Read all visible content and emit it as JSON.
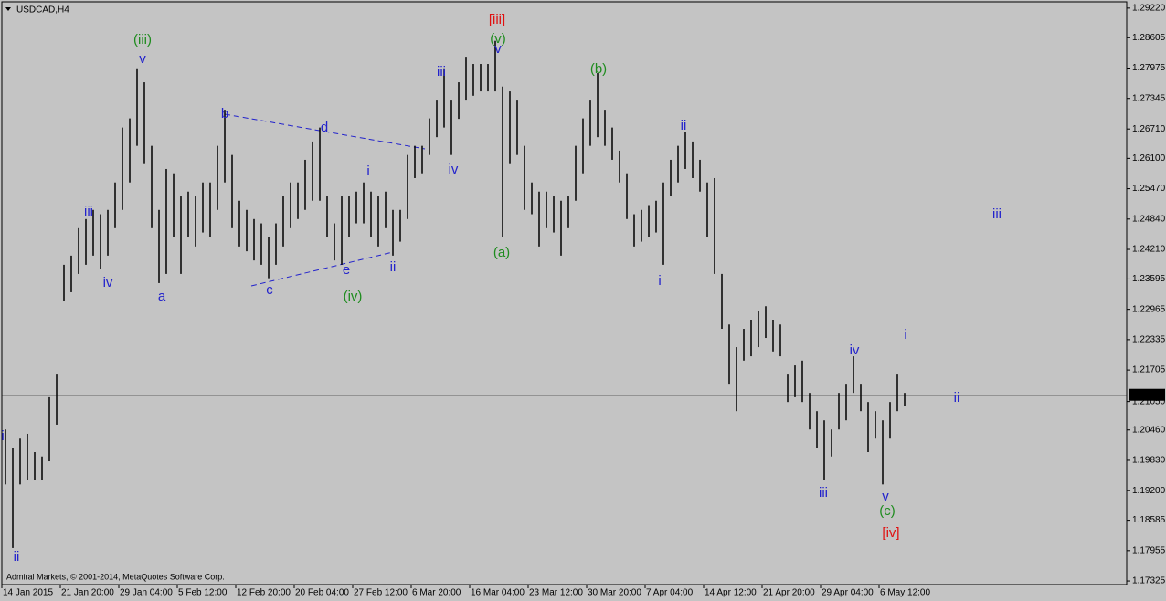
{
  "chart_data": {
    "type": "ohlc",
    "title": "USDCAD,H4",
    "footer": "Admiral Markets, © 2001-2014, MetaQuotes Software Corp.",
    "bar_color": "#000000",
    "background": "#c4c4c4",
    "categories": [
      "14 Jan 2015",
      null,
      null,
      null,
      null,
      null,
      null,
      null,
      "21 Jan 20:00",
      null,
      null,
      null,
      null,
      null,
      null,
      null,
      "29 Jan 04:00",
      null,
      null,
      null,
      null,
      null,
      null,
      null,
      "5 Feb 12:00",
      null,
      null,
      null,
      null,
      null,
      null,
      null,
      "12 Feb 20:00",
      null,
      null,
      null,
      null,
      null,
      null,
      null,
      "20 Feb 04:00",
      null,
      null,
      null,
      null,
      null,
      null,
      null,
      "27 Feb 12:00",
      null,
      null,
      null,
      null,
      null,
      null,
      null,
      "6 Mar 20:00",
      null,
      null,
      null,
      null,
      null,
      null,
      null,
      "16 Mar 04:00",
      null,
      null,
      null,
      null,
      null,
      null,
      null,
      "23 Mar 12:00",
      null,
      null,
      null,
      null,
      null,
      null,
      null,
      "30 Mar 20:00",
      null,
      null,
      null,
      null,
      null,
      null,
      null,
      "7 Apr 04:00",
      null,
      null,
      null,
      null,
      null,
      null,
      null,
      "14 Apr 12:00",
      null,
      null,
      null,
      null,
      null,
      null,
      null,
      "21 Apr 20:00",
      null,
      null,
      null,
      null,
      null,
      null,
      null,
      "29 Apr 04:00",
      null,
      null,
      null,
      null,
      null,
      null,
      null,
      "6 May 12:00",
      null,
      null,
      null
    ],
    "high": [
      1.2047,
      1.2009,
      1.2028,
      1.2038,
      1.2,
      1.1991,
      1.2114,
      1.2161,
      1.2389,
      1.2408,
      1.2465,
      1.2484,
      1.2503,
      1.2494,
      1.2503,
      1.256,
      1.2674,
      1.2693,
      1.2797,
      1.2768,
      1.2636,
      1.2503,
      1.2588,
      1.2579,
      1.2531,
      1.2541,
      1.2531,
      1.256,
      1.256,
      1.2636,
      1.2711,
      1.2617,
      1.2522,
      1.2503,
      1.2484,
      1.2475,
      1.2446,
      1.2475,
      1.2531,
      1.256,
      1.256,
      1.2607,
      1.2645,
      1.2674,
      1.2531,
      1.2475,
      1.2531,
      1.2531,
      1.2541,
      1.256,
      1.2541,
      1.2531,
      1.2541,
      1.2503,
      1.2503,
      1.2617,
      1.2636,
      1.2636,
      1.2693,
      1.273,
      1.2797,
      1.273,
      1.2768,
      1.2821,
      1.2806,
      1.2806,
      1.2806,
      1.2854,
      1.2759,
      1.2749,
      1.273,
      1.2636,
      1.256,
      1.2541,
      1.2541,
      1.2531,
      1.2522,
      1.2531,
      1.2636,
      1.2693,
      1.273,
      1.2787,
      1.2711,
      1.2674,
      1.2626,
      1.2579,
      1.2494,
      1.2503,
      1.2513,
      1.2522,
      1.256,
      1.2607,
      1.2636,
      1.2664,
      1.2645,
      1.2607,
      1.256,
      1.2569,
      1.237,
      1.2265,
      1.2218,
      1.2256,
      1.2275,
      1.2294,
      1.2303,
      1.2275,
      1.2265,
      1.2161,
      1.218,
      1.219,
      1.2123,
      1.2085,
      1.2066,
      1.2047,
      1.2123,
      1.2142,
      1.2199,
      1.2142,
      1.2104,
      1.2085,
      1.2066,
      1.2104,
      1.2161,
      1.2123
    ],
    "low": [
      1.1933,
      1.1801,
      1.1933,
      1.1943,
      1.1943,
      1.1943,
      1.1981,
      1.2057,
      1.2313,
      1.2332,
      1.237,
      1.2389,
      1.2408,
      1.238,
      1.2408,
      1.2465,
      1.2503,
      1.256,
      1.2636,
      1.2598,
      1.2465,
      1.2351,
      1.237,
      1.2446,
      1.237,
      1.2446,
      1.2427,
      1.2456,
      1.2446,
      1.2503,
      1.256,
      1.2465,
      1.2427,
      1.2417,
      1.2398,
      1.2389,
      1.2361,
      1.2389,
      1.2427,
      1.2465,
      1.2484,
      1.2503,
      1.2522,
      1.2522,
      1.2446,
      1.2398,
      1.2389,
      1.2446,
      1.2475,
      1.2475,
      1.2446,
      1.2427,
      1.2465,
      1.2408,
      1.2437,
      1.2484,
      1.2569,
      1.2579,
      1.2617,
      1.2654,
      1.2674,
      1.2617,
      1.2692,
      1.273,
      1.274,
      1.2749,
      1.2749,
      1.2749,
      1.2446,
      1.2598,
      1.2617,
      1.2503,
      1.2494,
      1.2427,
      1.2465,
      1.2456,
      1.2408,
      1.2465,
      1.2522,
      1.2579,
      1.2636,
      1.2654,
      1.2636,
      1.2607,
      1.256,
      1.2484,
      1.2427,
      1.2437,
      1.2446,
      1.2456,
      1.2389,
      1.2531,
      1.256,
      1.2588,
      1.2569,
      1.2541,
      1.2446,
      1.237,
      1.2256,
      1.2142,
      1.2085,
      1.219,
      1.2199,
      1.2218,
      1.2237,
      1.2209,
      1.2199,
      1.2104,
      1.2114,
      1.2104,
      1.2047,
      1.2009,
      1.1943,
      1.1991,
      1.2047,
      1.2066,
      1.2123,
      1.2085,
      1.2,
      1.2028,
      1.1933,
      1.2028,
      1.2085,
      1.2095
    ],
    "ylim": [
      1.1725,
      1.2935
    ],
    "yticks": [
      {
        "value": 1.2922,
        "label": "1.29220"
      },
      {
        "value": 1.28605,
        "label": "1.28605"
      },
      {
        "value": 1.27975,
        "label": "1.27975"
      },
      {
        "value": 1.27345,
        "label": "1.27345"
      },
      {
        "value": 1.2671,
        "label": "1.26710"
      },
      {
        "value": 1.261,
        "label": "1.26100"
      },
      {
        "value": 1.2547,
        "label": "1.25470"
      },
      {
        "value": 1.2484,
        "label": "1.24840"
      },
      {
        "value": 1.2421,
        "label": "1.24210"
      },
      {
        "value": 1.23595,
        "label": "1.23595"
      },
      {
        "value": 1.22965,
        "label": "1.22965"
      },
      {
        "value": 1.22335,
        "label": "1.22335"
      },
      {
        "value": 1.21705,
        "label": "1.21705"
      },
      {
        "value": 1.2105,
        "label": "1.21050"
      },
      {
        "value": 1.2046,
        "label": "1.20460"
      },
      {
        "value": 1.1983,
        "label": "1.19830"
      },
      {
        "value": 1.192,
        "label": "1.19200"
      },
      {
        "value": 1.18585,
        "label": "1.18585"
      },
      {
        "value": 1.17955,
        "label": "1.17955"
      },
      {
        "value": 1.17325,
        "label": "1.17325"
      }
    ],
    "current_price": {
      "value": 1.21181,
      "label": "1.21181"
    },
    "annotations": [
      {
        "text": "i",
        "color": "#2222cc"
      },
      {
        "text": "ii",
        "color": "#2222cc"
      },
      {
        "text": "iii",
        "color": "#2222cc"
      },
      {
        "text": "iv",
        "color": "#2222cc"
      },
      {
        "text": "(iii)",
        "color": "#1e8c1e"
      },
      {
        "text": "v",
        "color": "#2222cc"
      },
      {
        "text": "a",
        "color": "#2222cc"
      },
      {
        "text": "b",
        "color": "#2222cc"
      },
      {
        "text": "c",
        "color": "#2222cc"
      },
      {
        "text": "d",
        "color": "#2222cc"
      },
      {
        "text": "e",
        "color": "#2222cc"
      },
      {
        "text": "i",
        "color": "#2222cc"
      },
      {
        "text": "ii",
        "color": "#2222cc"
      },
      {
        "text": "(iv)",
        "color": "#1e8c1e"
      },
      {
        "text": "iii",
        "color": "#2222cc"
      },
      {
        "text": "iv",
        "color": "#2222cc"
      },
      {
        "text": "[iii]",
        "color": "#e01010"
      },
      {
        "text": "(v)",
        "color": "#1e8c1e"
      },
      {
        "text": "v",
        "color": "#2222cc"
      },
      {
        "text": "(a)",
        "color": "#1e8c1e"
      },
      {
        "text": "(b)",
        "color": "#1e8c1e"
      },
      {
        "text": "ii",
        "color": "#2222cc"
      },
      {
        "text": "i",
        "color": "#2222cc"
      },
      {
        "text": "iii",
        "color": "#2222cc"
      },
      {
        "text": "iv",
        "color": "#2222cc"
      },
      {
        "text": "i",
        "color": "#2222cc"
      },
      {
        "text": "ii",
        "color": "#2222cc"
      },
      {
        "text": "iii",
        "color": "#2222cc"
      },
      {
        "text": "v",
        "color": "#2222cc"
      },
      {
        "text": "(c)",
        "color": "#1e8c1e"
      },
      {
        "text": "[iv]",
        "color": "#e01010"
      }
    ]
  }
}
